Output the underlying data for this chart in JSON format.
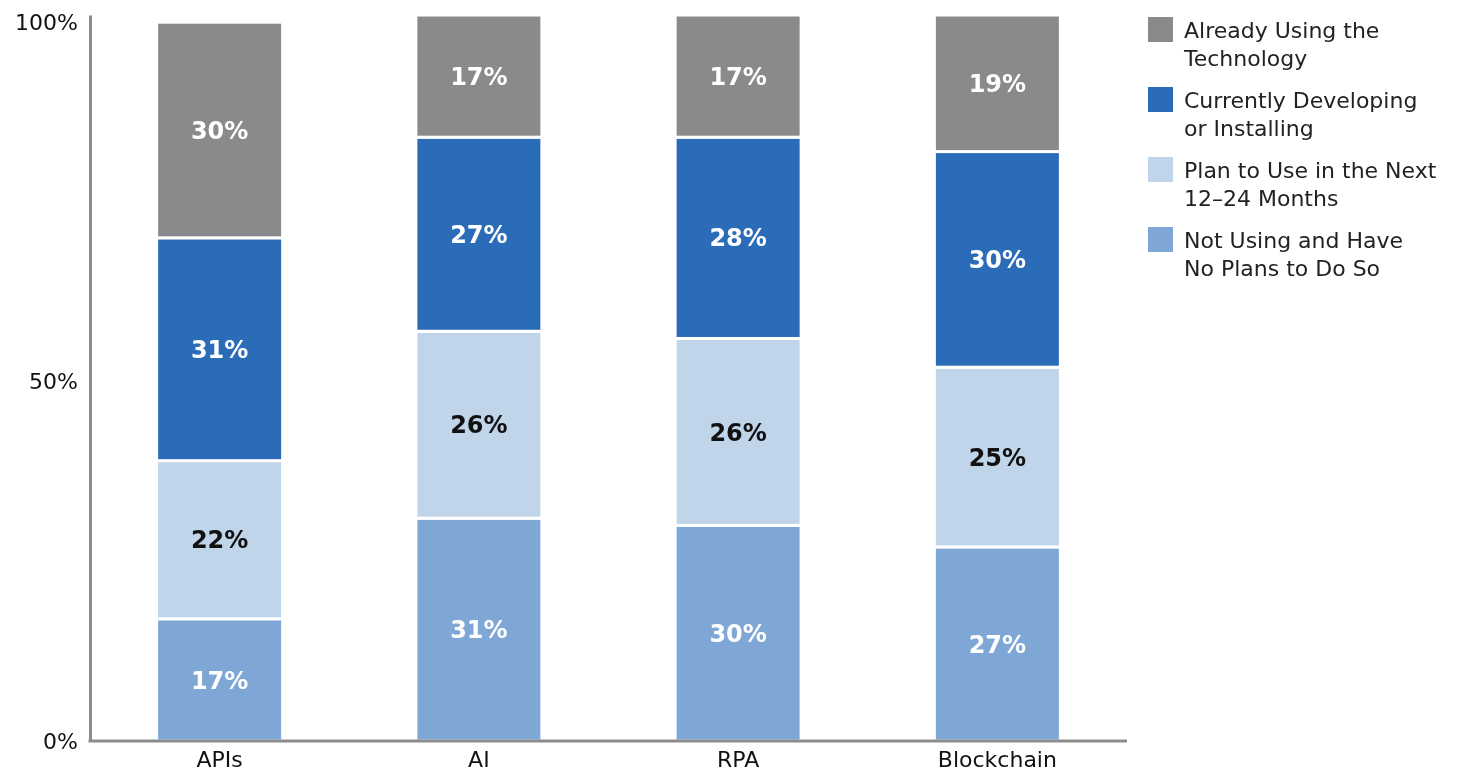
{
  "chart_data": {
    "type": "bar",
    "stacked": true,
    "categories": [
      "APIs",
      "AI",
      "RPA",
      "Blockchain"
    ],
    "series": [
      {
        "name": "Not Using and Have No Plans to Do So",
        "color": "#7fa7d6",
        "values": [
          17,
          31,
          30,
          27
        ],
        "value_labels": [
          "17%",
          "31%",
          "30%",
          "27%"
        ]
      },
      {
        "name": "Plan to Use in the Next 12–24 Months",
        "color": "#c0d4ea",
        "values": [
          22,
          26,
          26,
          25
        ],
        "value_labels": [
          "22%",
          "26%",
          "26%",
          "25%"
        ]
      },
      {
        "name": "Currently Developing or Installing",
        "color": "#2b6cb9",
        "values": [
          31,
          27,
          28,
          30
        ],
        "value_labels": [
          "31%",
          "27%",
          "28%",
          "30%"
        ]
      },
      {
        "name": "Already Using the Technology",
        "color": "#8a8a8c",
        "values": [
          30,
          17,
          17,
          19
        ],
        "value_labels": [
          "30%",
          "17%",
          "17%",
          "19%"
        ]
      }
    ],
    "ylim": [
      0,
      101
    ],
    "yticks": [
      {
        "value": 0,
        "label": "0%"
      },
      {
        "value": 50,
        "label": "50%"
      },
      {
        "value": 100,
        "label": "100%"
      }
    ],
    "grid": false,
    "legend": "top right"
  }
}
